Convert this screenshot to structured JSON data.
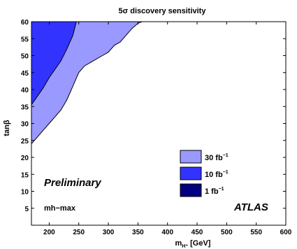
{
  "chart_data": {
    "type": "area",
    "title": "5σ discovery sensitivity",
    "xlabel": "m",
    "xlabel_sub": "H⁺",
    "xlabel_unit": " [GeV]",
    "ylabel": "tanβ",
    "xlim": [
      170,
      600
    ],
    "ylim": [
      0,
      60
    ],
    "x_ticks": [
      200,
      250,
      300,
      350,
      400,
      450,
      500,
      550,
      600
    ],
    "y_ticks": [
      5,
      10,
      15,
      20,
      25,
      30,
      35,
      40,
      45,
      50,
      55,
      60
    ],
    "grid": false,
    "legend_position": "bottom-right",
    "series": [
      {
        "name": "30 fb",
        "sup": "−1",
        "color": "#9999ff",
        "boundary": [
          [
            170,
            24
          ],
          [
            180,
            26
          ],
          [
            190,
            28
          ],
          [
            200,
            30
          ],
          [
            210,
            32
          ],
          [
            220,
            34
          ],
          [
            230,
            37
          ],
          [
            240,
            41
          ],
          [
            250,
            45
          ],
          [
            260,
            47
          ],
          [
            270,
            48
          ],
          [
            280,
            49
          ],
          [
            290,
            50
          ],
          [
            300,
            51
          ],
          [
            310,
            53
          ],
          [
            320,
            54
          ],
          [
            330,
            56
          ],
          [
            340,
            58
          ],
          [
            350,
            59.5
          ],
          [
            357,
            60
          ]
        ]
      },
      {
        "name": "10 fb",
        "sup": "−1",
        "color": "#3333ff",
        "boundary": [
          [
            170,
            35.5
          ],
          [
            180,
            38
          ],
          [
            190,
            40.5
          ],
          [
            200,
            43.5
          ],
          [
            210,
            46
          ],
          [
            220,
            48.5
          ],
          [
            230,
            52
          ],
          [
            240,
            56
          ],
          [
            246,
            60
          ]
        ]
      },
      {
        "name": "1 fb",
        "sup": "−1",
        "color": "#000080",
        "boundary": []
      }
    ],
    "annotations": [
      {
        "text": "Preliminary",
        "style": "bold-italic"
      },
      {
        "text": "mh−max",
        "style": "bold"
      },
      {
        "text": "ATLAS",
        "style": "bold-italic"
      }
    ]
  }
}
